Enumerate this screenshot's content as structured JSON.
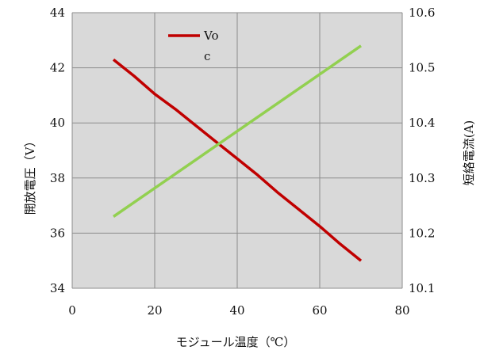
{
  "chart_data": {
    "type": "line",
    "xlabel": "モジュール温度（℃）",
    "ylabel_left": "開放電圧（V）",
    "ylabel_right": "短絡電流(A)",
    "xlim": [
      0,
      80
    ],
    "ylim_left": [
      34,
      44
    ],
    "ylim_right": [
      10.1,
      10.6
    ],
    "x_ticks": [
      "0",
      "20",
      "40",
      "60",
      "80"
    ],
    "y_left_ticks": [
      "34",
      "36",
      "38",
      "40",
      "42",
      "44"
    ],
    "y_right_ticks": [
      "10.1",
      "10.2",
      "10.3",
      "10.4",
      "10.5",
      "10.6"
    ],
    "grid": true,
    "legend": {
      "position": "top-left",
      "label": "Voc",
      "label_lines": [
        "Vo",
        "c"
      ]
    },
    "series": [
      {
        "name": "Voc",
        "axis": "left",
        "color": "#c00000",
        "x": [
          10,
          15,
          20,
          25,
          30,
          35,
          40,
          45,
          50,
          55,
          60,
          65,
          70
        ],
        "y": [
          42.3,
          41.7,
          41.05,
          40.5,
          39.9,
          39.3,
          38.7,
          38.1,
          37.45,
          36.85,
          36.25,
          35.6,
          35.0
        ]
      },
      {
        "axis": "right",
        "color": "#92d050",
        "x": [
          10,
          70
        ],
        "y": [
          10.23,
          10.54
        ]
      }
    ]
  }
}
